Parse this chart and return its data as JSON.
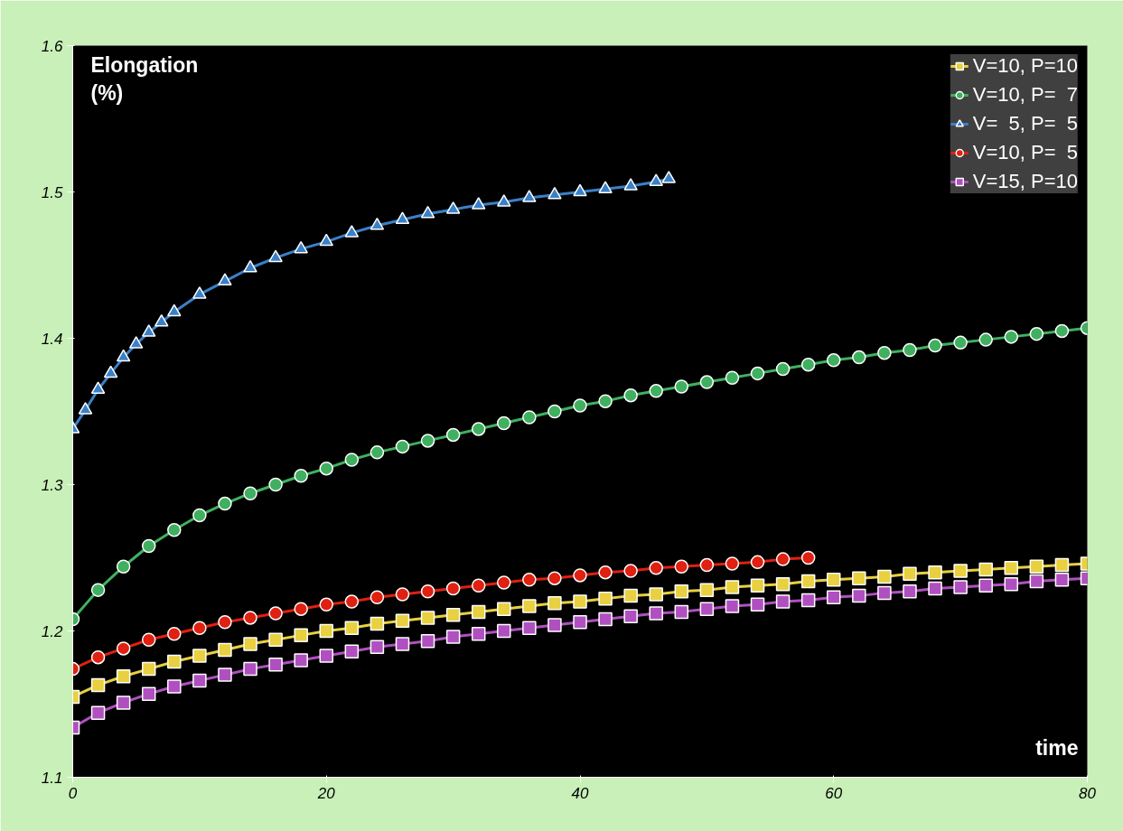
{
  "chart_data": {
    "type": "line",
    "xlabel": "time",
    "ylabel": "Elongation (%)",
    "xlim": [
      0,
      80
    ],
    "ylim": [
      1.1,
      1.6
    ],
    "xticks": [
      0,
      20,
      40,
      60,
      80
    ],
    "yticks": [
      1.1,
      1.2,
      1.3,
      1.4,
      1.5,
      1.6
    ],
    "grid": false,
    "legend": "top right",
    "line_style": "solid",
    "series": [
      {
        "name": "V=10, P=10",
        "color": "#e8d040",
        "marker": "square",
        "x": [
          0,
          2,
          4,
          6,
          8,
          10,
          12,
          14,
          16,
          18,
          20,
          22,
          24,
          26,
          28,
          30,
          32,
          34,
          36,
          38,
          40,
          42,
          44,
          46,
          48,
          50,
          52,
          54,
          56,
          58,
          60,
          62,
          64,
          66,
          68,
          70,
          72,
          74,
          76,
          78,
          80
        ],
        "values": [
          1.155,
          1.163,
          1.169,
          1.174,
          1.179,
          1.183,
          1.187,
          1.191,
          1.194,
          1.197,
          1.2,
          1.202,
          1.205,
          1.207,
          1.209,
          1.211,
          1.213,
          1.215,
          1.217,
          1.219,
          1.22,
          1.222,
          1.224,
          1.225,
          1.227,
          1.228,
          1.23,
          1.231,
          1.232,
          1.234,
          1.235,
          1.236,
          1.237,
          1.239,
          1.24,
          1.241,
          1.242,
          1.243,
          1.244,
          1.245,
          1.246
        ]
      },
      {
        "name": "V=10, P=  7",
        "color": "#40b060",
        "marker": "circle",
        "x": [
          0,
          2,
          4,
          6,
          8,
          10,
          12,
          14,
          16,
          18,
          20,
          22,
          24,
          26,
          28,
          30,
          32,
          34,
          36,
          38,
          40,
          42,
          44,
          46,
          48,
          50,
          52,
          54,
          56,
          58,
          60,
          62,
          64,
          66,
          68,
          70,
          72,
          74,
          76,
          78,
          80
        ],
        "values": [
          1.208,
          1.228,
          1.244,
          1.258,
          1.269,
          1.279,
          1.287,
          1.294,
          1.3,
          1.306,
          1.311,
          1.317,
          1.322,
          1.326,
          1.33,
          1.334,
          1.338,
          1.342,
          1.346,
          1.35,
          1.354,
          1.357,
          1.361,
          1.364,
          1.367,
          1.37,
          1.373,
          1.376,
          1.379,
          1.382,
          1.385,
          1.387,
          1.39,
          1.392,
          1.395,
          1.397,
          1.399,
          1.401,
          1.403,
          1.405,
          1.407
        ]
      },
      {
        "name": "V=  5, P=  5",
        "color": "#3a80c8",
        "marker": "triangle",
        "x": [
          0,
          1,
          2,
          3,
          4,
          5,
          6,
          7,
          8,
          10,
          12,
          14,
          16,
          18,
          20,
          22,
          24,
          26,
          28,
          30,
          32,
          34,
          36,
          38,
          40,
          42,
          44,
          46,
          47
        ],
        "values": [
          1.338,
          1.351,
          1.365,
          1.376,
          1.387,
          1.396,
          1.404,
          1.411,
          1.418,
          1.43,
          1.439,
          1.448,
          1.455,
          1.461,
          1.466,
          1.472,
          1.477,
          1.481,
          1.485,
          1.488,
          1.491,
          1.493,
          1.496,
          1.498,
          1.5,
          1.502,
          1.504,
          1.507,
          1.509
        ]
      },
      {
        "name": "V=10, P=  5",
        "color": "#e02010",
        "marker": "circle",
        "x": [
          0,
          2,
          4,
          6,
          8,
          10,
          12,
          14,
          16,
          18,
          20,
          22,
          24,
          26,
          28,
          30,
          32,
          34,
          36,
          38,
          40,
          42,
          44,
          46,
          48,
          50,
          52,
          54,
          56,
          58
        ],
        "values": [
          1.174,
          1.182,
          1.188,
          1.194,
          1.198,
          1.202,
          1.206,
          1.209,
          1.212,
          1.215,
          1.218,
          1.22,
          1.223,
          1.225,
          1.227,
          1.229,
          1.231,
          1.233,
          1.235,
          1.236,
          1.238,
          1.24,
          1.241,
          1.243,
          1.244,
          1.245,
          1.246,
          1.247,
          1.249,
          1.25
        ]
      },
      {
        "name": "V=15, P=10",
        "color": "#b050c0",
        "marker": "square",
        "x": [
          0,
          2,
          4,
          6,
          8,
          10,
          12,
          14,
          16,
          18,
          20,
          22,
          24,
          26,
          28,
          30,
          32,
          34,
          36,
          38,
          40,
          42,
          44,
          46,
          48,
          50,
          52,
          54,
          56,
          58,
          60,
          62,
          64,
          66,
          68,
          70,
          72,
          74,
          76,
          78,
          80
        ],
        "values": [
          1.134,
          1.144,
          1.151,
          1.157,
          1.162,
          1.166,
          1.17,
          1.174,
          1.177,
          1.18,
          1.183,
          1.186,
          1.189,
          1.191,
          1.193,
          1.196,
          1.198,
          1.2,
          1.202,
          1.204,
          1.206,
          1.208,
          1.21,
          1.212,
          1.213,
          1.215,
          1.217,
          1.218,
          1.22,
          1.221,
          1.223,
          1.224,
          1.226,
          1.227,
          1.229,
          1.23,
          1.231,
          1.232,
          1.234,
          1.235,
          1.236
        ]
      }
    ]
  }
}
